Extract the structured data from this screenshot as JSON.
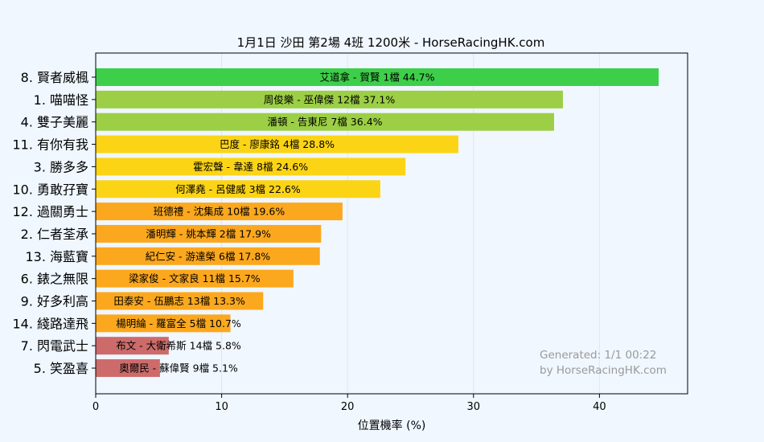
{
  "chart_data": {
    "type": "bar",
    "orientation": "horizontal",
    "title": "1月1日  沙田  第2場  4班  1200米 - HorseRacingHK.com",
    "xlabel": "位置機率 (%)",
    "ylabel": "",
    "xlim": [
      0,
      47
    ],
    "xticks": [
      "0",
      "10",
      "20",
      "30",
      "40"
    ],
    "grid": true,
    "legend": "none",
    "categories": [
      "8. 賢者威楓",
      "1. 喵喵怪",
      "4. 雙子美麗",
      "11. 有你有我",
      "3. 勝多多",
      "10. 勇敢孖寶",
      "12. 過關勇士",
      "2. 仁者荃承",
      "13. 海藍寶",
      "6. 錶之無限",
      "9. 好多利高",
      "14. 綫路達飛",
      "7. 閃電武士",
      "5. 笑盈喜"
    ],
    "values": [
      44.7,
      37.1,
      36.4,
      28.8,
      24.6,
      22.6,
      19.6,
      17.9,
      17.8,
      15.7,
      13.3,
      10.7,
      5.8,
      5.1
    ],
    "bar_labels": [
      "艾道拿 - 賀賢 1檔  44.7%",
      "周俊樂 - 巫偉傑 12檔  37.1%",
      "潘頓 - 告東尼 7檔  36.4%",
      "巴度 - 廖康銘 4檔  28.8%",
      "霍宏聲 - 韋達 8檔  24.6%",
      "何澤堯 - 呂健威 3檔  22.6%",
      "班德禮 - 沈集成 10檔  19.6%",
      "潘明輝 - 姚本輝 2檔  17.9%",
      "紀仁安 - 游達榮 6檔  17.8%",
      "梁家俊 - 文家良 11檔  15.7%",
      "田泰安 - 伍鵬志 13檔  13.3%",
      "楊明綸 - 羅富全 5檔  10.7%",
      "布文 - 大衛希斯 14檔  5.8%",
      "奧爾民 - 蘇偉賢 9檔  5.1%"
    ],
    "colors": [
      "#3ecf4a",
      "#9ccf45",
      "#9ccf45",
      "#fcd416",
      "#fcd416",
      "#fcd416",
      "#fca81e",
      "#fca81e",
      "#fca81e",
      "#fca81e",
      "#fca81e",
      "#fca81e",
      "#cd6b6b",
      "#cd6b6b"
    ],
    "watermark": [
      "Generated: 1/1 00:22",
      "by HorseRacingHK.com"
    ]
  },
  "colors": {
    "background": "#f0f7ff",
    "axis": "#000000",
    "grid": "#dde6f0",
    "watermark": "#9a9a9a"
  }
}
